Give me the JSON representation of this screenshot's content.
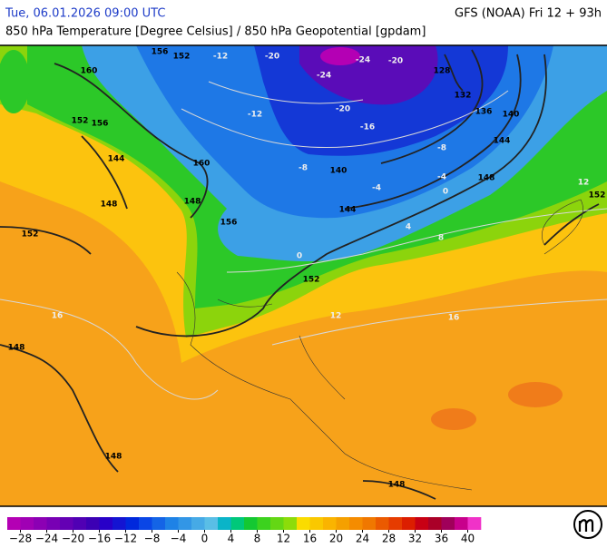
{
  "header": {
    "datetime": "Tue, 06.01.2026 09:00 UTC",
    "model": "GFS (NOAA) Fri 12 + 93h",
    "subtitle": "850 hPa Temperature [Degree Celsius] / 850 hPa Geopotential [gpdam]"
  },
  "contour_labels": {
    "geopotential": [
      160,
      156,
      152,
      128,
      132,
      136,
      140,
      144,
      148,
      152,
      152,
      148,
      148,
      144,
      160,
      156,
      152,
      148,
      148,
      148,
      140,
      144,
      152,
      156
    ],
    "temperature": [
      -24,
      -20,
      -20,
      -24,
      -20,
      -16,
      -8,
      -4,
      0,
      4,
      8,
      12,
      16,
      16,
      -12,
      -12,
      -8,
      -4,
      0,
      12
    ]
  },
  "legend": {
    "lim": [
      -30,
      42
    ],
    "ticks": [
      {
        "value": -28,
        "label": "−28"
      },
      {
        "value": -24,
        "label": "−24"
      },
      {
        "value": -20,
        "label": "−20"
      },
      {
        "value": -16,
        "label": "−16"
      },
      {
        "value": -12,
        "label": "−12"
      },
      {
        "value": -8,
        "label": "−8"
      },
      {
        "value": -4,
        "label": "−4"
      },
      0,
      4,
      8,
      12,
      16,
      20,
      24,
      28,
      32,
      36,
      40
    ],
    "colors": [
      "#b400b4",
      "#a000b4",
      "#8c00b4",
      "#7800b4",
      "#6400b4",
      "#5000b4",
      "#3c00b4",
      "#2800c8",
      "#1414d2",
      "#0028dc",
      "#0a46e6",
      "#1464e6",
      "#1e82e6",
      "#3296e6",
      "#46aae6",
      "#5abee6",
      "#0ab4c8",
      "#00c87a",
      "#14c832",
      "#3cd21e",
      "#64d714",
      "#8cdc0a",
      "#fadc00",
      "#fac800",
      "#fab400",
      "#f5a000",
      "#f58c00",
      "#f07800",
      "#eb5a00",
      "#e63c00",
      "#dc1e00",
      "#c80014",
      "#aa0028",
      "#a0005a",
      "#c8008c",
      "#f032c8"
    ]
  }
}
